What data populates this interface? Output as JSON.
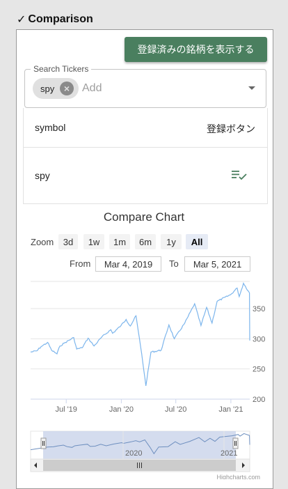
{
  "section": {
    "title": "Comparison"
  },
  "register_button": {
    "label": "登録済みの銘柄を表示する"
  },
  "search": {
    "legend": "Search Tickers",
    "chip_label": "spy",
    "placeholder": "Add"
  },
  "table": {
    "header_left": "symbol",
    "header_right": "登録ボタン",
    "rows": [
      {
        "symbol": "spy"
      }
    ]
  },
  "chart": {
    "title": "Compare Chart",
    "zoom_label": "Zoom",
    "zoom_buttons": [
      "3d",
      "1w",
      "1m",
      "6m",
      "1y",
      "All"
    ],
    "active_zoom": "All",
    "from_label": "From",
    "from_value": "Mar 4, 2019",
    "to_label": "To",
    "to_value": "Mar 5, 2021",
    "credits": "Highcharts.com",
    "navigator_labels": [
      "2020",
      "2021"
    ],
    "line_color": "#7cb5ec"
  },
  "chart_data": {
    "type": "line",
    "title": "Compare Chart",
    "xlabel": "",
    "ylabel": "",
    "x_ticks": [
      "Jul '19",
      "Jan '20",
      "Jul '20",
      "Jan '21"
    ],
    "y_ticks": [
      200,
      250,
      300,
      350
    ],
    "ylim": [
      200,
      395
    ],
    "series": [
      {
        "values": [
          [
            "2019-03-04",
            278
          ],
          [
            "2019-03-25",
            280
          ],
          [
            "2019-04-08",
            287
          ],
          [
            "2019-04-30",
            294
          ],
          [
            "2019-05-13",
            281
          ],
          [
            "2019-05-31",
            275
          ],
          [
            "2019-06-10",
            288
          ],
          [
            "2019-06-28",
            294
          ],
          [
            "2019-07-26",
            302
          ],
          [
            "2019-08-05",
            283
          ],
          [
            "2019-08-23",
            285
          ],
          [
            "2019-09-12",
            301
          ],
          [
            "2019-10-02",
            288
          ],
          [
            "2019-10-28",
            303
          ],
          [
            "2019-11-27",
            315
          ],
          [
            "2019-12-03",
            309
          ],
          [
            "2019-12-31",
            322
          ],
          [
            "2020-01-17",
            332
          ],
          [
            "2020-01-31",
            321
          ],
          [
            "2020-02-19",
            338
          ],
          [
            "2020-03-09",
            275
          ],
          [
            "2020-03-23",
            222
          ],
          [
            "2020-04-09",
            278
          ],
          [
            "2020-05-13",
            281
          ],
          [
            "2020-06-08",
            323
          ],
          [
            "2020-06-26",
            300
          ],
          [
            "2020-07-31",
            326
          ],
          [
            "2020-09-02",
            358
          ],
          [
            "2020-09-23",
            322
          ],
          [
            "2020-10-12",
            352
          ],
          [
            "2020-10-30",
            326
          ],
          [
            "2020-11-16",
            362
          ],
          [
            "2020-12-31",
            373
          ],
          [
            "2021-01-22",
            384
          ],
          [
            "2021-01-29",
            370
          ],
          [
            "2021-02-12",
            392
          ],
          [
            "2021-03-04",
            376
          ],
          [
            "2021-03-05",
            297
          ]
        ]
      }
    ],
    "legend": "none",
    "grid": true
  }
}
